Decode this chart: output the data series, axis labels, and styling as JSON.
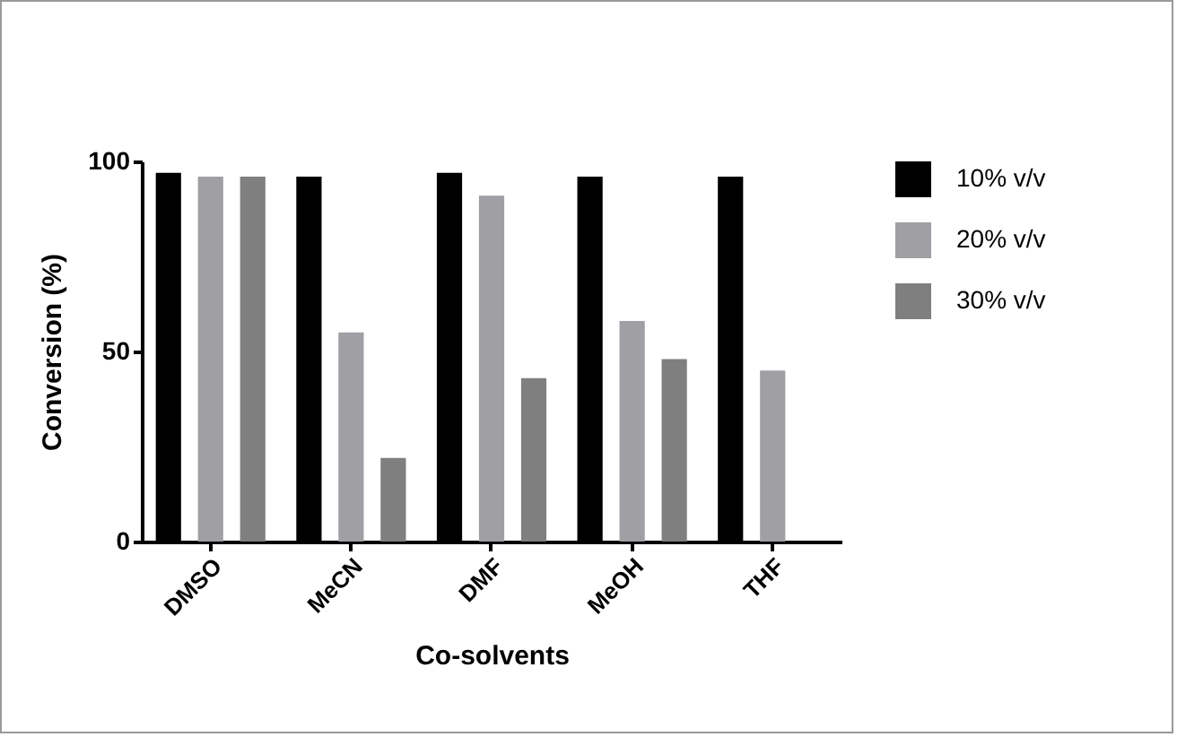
{
  "chart_data": {
    "type": "bar",
    "xlabel": "Co-solvents",
    "ylabel": "Conversion (%)",
    "categories": [
      "DMSO",
      "MeCN",
      "DMF",
      "MeOH",
      "THF"
    ],
    "series": [
      {
        "name": "10% v/v",
        "color": "#000000",
        "values": [
          97,
          96,
          97,
          96,
          96
        ]
      },
      {
        "name": "20% v/v",
        "color": "#a09fa4",
        "values": [
          96,
          55,
          91,
          58,
          45
        ]
      },
      {
        "name": "30% v/v",
        "color": "#7f7f7f",
        "values": [
          96,
          22,
          43,
          48,
          null
        ]
      }
    ],
    "ylim": [
      0,
      100
    ],
    "yticks": [
      0,
      50,
      100
    ],
    "grid": false,
    "legend": "top right"
  }
}
